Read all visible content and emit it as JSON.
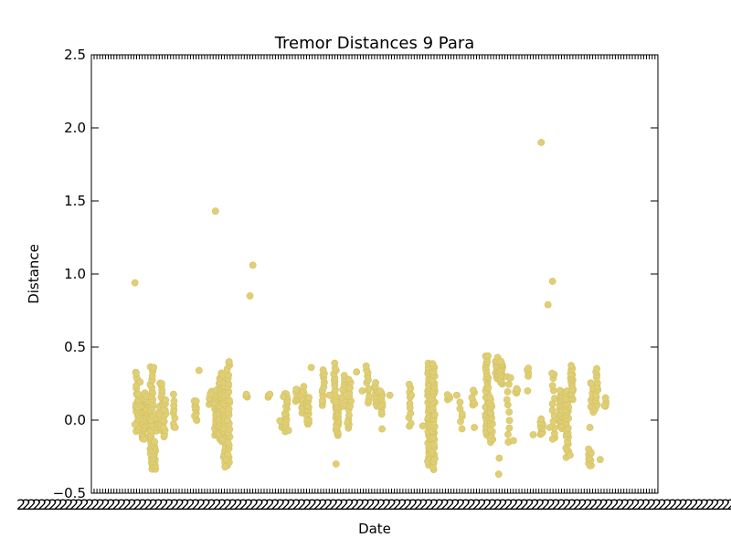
{
  "chart_data": {
    "type": "scatter",
    "title": "Tremor Distances 9 Para",
    "xlabel": "Date",
    "ylabel": "Distance",
    "ylim": [
      -0.5,
      2.5
    ],
    "yticks": [
      -0.5,
      0.0,
      0.5,
      1.0,
      1.5,
      2.0,
      2.5
    ],
    "ytick_labels": [
      "−0.5",
      "0.0",
      "0.5",
      "1.0",
      "1.5",
      "2.0",
      "2.5"
    ],
    "xlim": [
      0,
      100
    ],
    "xtick_labels_legible": false,
    "grid": false,
    "legend": false,
    "point_color": "#e0cf75",
    "series": [
      {
        "clusters": [
          {
            "x": 8.0,
            "ymin": -0.08,
            "ymax": 0.32,
            "n": 16
          },
          {
            "x": 8.5,
            "ymin": -0.06,
            "ymax": 0.18,
            "n": 14
          },
          {
            "x": 9.2,
            "ymin": -0.12,
            "ymax": 0.18,
            "n": 30
          },
          {
            "x": 9.8,
            "ymin": -0.05,
            "ymax": 0.16,
            "n": 20
          },
          {
            "x": 10.4,
            "ymin": -0.12,
            "ymax": 0.03,
            "n": 10
          },
          {
            "x": 10.6,
            "ymin": -0.33,
            "ymax": 0.37,
            "n": 34
          },
          {
            "x": 11.1,
            "ymin": -0.33,
            "ymax": -0.15,
            "n": 18
          },
          {
            "x": 11.7,
            "ymin": -0.07,
            "ymax": 0.05,
            "n": 8
          },
          {
            "x": 12.3,
            "ymin": -0.08,
            "ymax": 0.25,
            "n": 14
          },
          {
            "x": 12.9,
            "ymin": -0.12,
            "ymax": 0.14,
            "n": 14
          },
          {
            "x": 14.7,
            "ymin": -0.05,
            "ymax": 0.17,
            "n": 8
          },
          {
            "x": 18.4,
            "ymin": 0.0,
            "ymax": 0.14,
            "n": 12
          },
          {
            "x": 21.0,
            "ymin": 0.1,
            "ymax": 0.2,
            "n": 6
          },
          {
            "x": 22.0,
            "ymin": -0.1,
            "ymax": 0.2,
            "n": 30
          },
          {
            "x": 22.8,
            "ymin": -0.15,
            "ymax": 0.32,
            "n": 34
          },
          {
            "x": 23.5,
            "ymin": -0.3,
            "ymax": 0.3,
            "n": 30
          },
          {
            "x": 24.2,
            "ymin": -0.32,
            "ymax": 0.4,
            "n": 26
          },
          {
            "x": 27.4,
            "ymin": 0.15,
            "ymax": 0.18,
            "n": 4
          },
          {
            "x": 31.4,
            "ymin": 0.15,
            "ymax": 0.17,
            "n": 3
          },
          {
            "x": 33.5,
            "ymin": -0.05,
            "ymax": 0.0,
            "n": 4
          },
          {
            "x": 34.4,
            "ymin": -0.07,
            "ymax": 0.19,
            "n": 16
          },
          {
            "x": 36.3,
            "ymin": 0.13,
            "ymax": 0.22,
            "n": 8
          },
          {
            "x": 37.3,
            "ymin": 0.05,
            "ymax": 0.2,
            "n": 10
          },
          {
            "x": 38.2,
            "ymin": -0.02,
            "ymax": 0.15,
            "n": 18
          },
          {
            "x": 41.0,
            "ymin": 0.1,
            "ymax": 0.35,
            "n": 12
          },
          {
            "x": 43.0,
            "ymin": 0.1,
            "ymax": 0.38,
            "n": 14
          },
          {
            "x": 43.4,
            "ymin": -0.1,
            "ymax": 0.13,
            "n": 30
          },
          {
            "x": 44.5,
            "ymin": 0.1,
            "ymax": 0.3,
            "n": 10
          },
          {
            "x": 45.6,
            "ymin": -0.06,
            "ymax": 0.28,
            "n": 12
          },
          {
            "x": 48.8,
            "ymin": 0.12,
            "ymax": 0.35,
            "n": 10
          },
          {
            "x": 50.2,
            "ymin": 0.1,
            "ymax": 0.25,
            "n": 12
          },
          {
            "x": 51.2,
            "ymin": 0.05,
            "ymax": 0.2,
            "n": 10
          },
          {
            "x": 56.2,
            "ymin": -0.05,
            "ymax": 0.25,
            "n": 10
          },
          {
            "x": 59.6,
            "ymin": -0.3,
            "ymax": 0.38,
            "n": 60
          },
          {
            "x": 60.4,
            "ymin": -0.33,
            "ymax": 0.38,
            "n": 50
          },
          {
            "x": 63.1,
            "ymin": 0.15,
            "ymax": 0.18,
            "n": 4
          },
          {
            "x": 65.3,
            "ymin": -0.05,
            "ymax": 0.12,
            "n": 6
          },
          {
            "x": 67.4,
            "ymin": 0.1,
            "ymax": 0.2,
            "n": 6
          },
          {
            "x": 69.8,
            "ymin": -0.1,
            "ymax": 0.44,
            "n": 34
          },
          {
            "x": 70.6,
            "ymin": -0.15,
            "ymax": 0.15,
            "n": 20
          },
          {
            "x": 71.6,
            "ymin": 0.28,
            "ymax": 0.42,
            "n": 24
          },
          {
            "x": 72.4,
            "ymin": 0.25,
            "ymax": 0.4,
            "n": 18
          },
          {
            "x": 73.6,
            "ymin": -0.15,
            "ymax": 0.3,
            "n": 10
          },
          {
            "x": 75.0,
            "ymin": 0.18,
            "ymax": 0.22,
            "n": 4
          },
          {
            "x": 77.2,
            "ymin": 0.3,
            "ymax": 0.35,
            "n": 4
          },
          {
            "x": 79.5,
            "ymin": -0.1,
            "ymax": 0.0,
            "n": 16
          },
          {
            "x": 81.6,
            "ymin": -0.13,
            "ymax": 0.32,
            "n": 12
          },
          {
            "x": 82.9,
            "ymin": -0.05,
            "ymax": 0.2,
            "n": 30
          },
          {
            "x": 84.0,
            "ymin": -0.25,
            "ymax": 0.2,
            "n": 30
          },
          {
            "x": 84.8,
            "ymin": 0.15,
            "ymax": 0.37,
            "n": 20
          },
          {
            "x": 88.0,
            "ymin": -0.32,
            "ymax": -0.2,
            "n": 10
          },
          {
            "x": 88.4,
            "ymin": 0.05,
            "ymax": 0.25,
            "n": 10
          },
          {
            "x": 89.2,
            "ymin": 0.08,
            "ymax": 0.36,
            "n": 12
          },
          {
            "x": 90.8,
            "ymin": 0.1,
            "ymax": 0.15,
            "n": 4
          }
        ],
        "outliers": [
          {
            "x": 7.9,
            "y": 0.32
          },
          {
            "x": 8.6,
            "y": 0.26
          },
          {
            "x": 9.3,
            "y": -0.13
          },
          {
            "x": 11.0,
            "y": 0.36
          },
          {
            "x": 12.4,
            "y": 0.25
          },
          {
            "x": 14.8,
            "y": -0.05
          },
          {
            "x": 18.5,
            "y": 0.13
          },
          {
            "x": 19.0,
            "y": 0.34
          },
          {
            "x": 21.0,
            "y": 0.18
          },
          {
            "x": 24.3,
            "y": 0.4
          },
          {
            "x": 23.6,
            "y": -0.32
          },
          {
            "x": 23.8,
            "y": -0.27
          },
          {
            "x": 33.9,
            "y": 0.16
          },
          {
            "x": 34.8,
            "y": -0.07
          },
          {
            "x": 37.5,
            "y": 0.23
          },
          {
            "x": 38.8,
            "y": 0.36
          },
          {
            "x": 42.0,
            "y": 0.17
          },
          {
            "x": 43.2,
            "y": -0.3
          },
          {
            "x": 45.2,
            "y": -0.02
          },
          {
            "x": 46.8,
            "y": 0.33
          },
          {
            "x": 47.8,
            "y": 0.2
          },
          {
            "x": 48.5,
            "y": 0.37
          },
          {
            "x": 51.3,
            "y": -0.06
          },
          {
            "x": 52.7,
            "y": 0.17
          },
          {
            "x": 56.5,
            "y": 0.17
          },
          {
            "x": 58.5,
            "y": -0.04
          },
          {
            "x": 64.5,
            "y": 0.17
          },
          {
            "x": 67.6,
            "y": -0.05
          },
          {
            "x": 70.0,
            "y": 0.44
          },
          {
            "x": 71.9,
            "y": -0.37
          },
          {
            "x": 72.0,
            "y": -0.26
          },
          {
            "x": 74.0,
            "y": 0.29
          },
          {
            "x": 73.6,
            "y": -0.15
          },
          {
            "x": 74.5,
            "y": -0.14
          },
          {
            "x": 77.0,
            "y": 0.2
          },
          {
            "x": 78.0,
            "y": -0.1
          },
          {
            "x": 80.9,
            "y": -0.05
          },
          {
            "x": 81.3,
            "y": 0.32
          },
          {
            "x": 81.4,
            "y": -0.13
          },
          {
            "x": 84.5,
            "y": -0.24
          },
          {
            "x": 88.0,
            "y": -0.05
          },
          {
            "x": 88.2,
            "y": 0.25
          },
          {
            "x": 89.8,
            "y": -0.27
          },
          {
            "x": 90.6,
            "y": 0.1
          },
          {
            "x": 7.7,
            "y": -0.03
          }
        ],
        "far_outliers": [
          {
            "x": 7.7,
            "y": 0.94
          },
          {
            "x": 21.9,
            "y": 1.43
          },
          {
            "x": 28.0,
            "y": 0.85
          },
          {
            "x": 28.5,
            "y": 1.06
          },
          {
            "x": 81.4,
            "y": 0.95
          },
          {
            "x": 79.4,
            "y": 1.9
          },
          {
            "x": 80.6,
            "y": 0.79
          }
        ]
      }
    ]
  }
}
